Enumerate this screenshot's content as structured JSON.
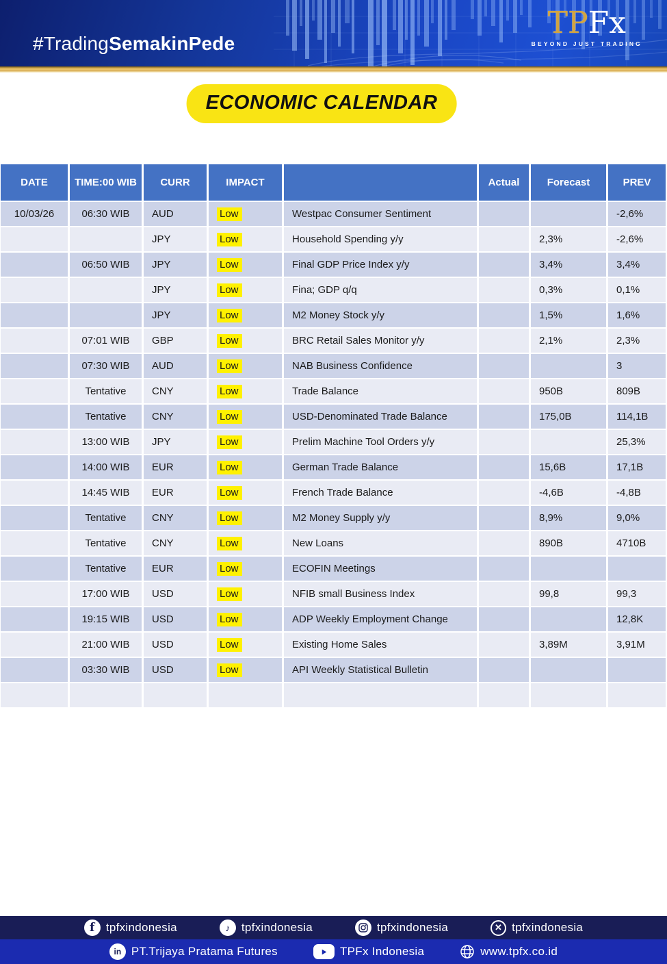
{
  "banner": {
    "hashtag_light": "#Trading",
    "hashtag_bold": "SemakinPede",
    "logo_tp": "TP",
    "logo_fx": "Fx",
    "logo_tagline": "BEYOND JUST TRADING"
  },
  "title": "ECONOMIC CALENDAR",
  "table": {
    "headers": [
      "DATE",
      "TIME:00 WIB",
      "CURR",
      "IMPACT",
      "",
      "Actual",
      "Forecast",
      "PREV"
    ],
    "rows": [
      [
        "10/03/26",
        "06:30 WIB",
        "AUD",
        "Low",
        "Westpac Consumer Sentiment",
        "",
        "",
        "-2,6%"
      ],
      [
        "",
        "",
        "JPY",
        "Low",
        "Household Spending y/y",
        "",
        "2,3%",
        "-2,6%"
      ],
      [
        "",
        "06:50 WIB",
        "JPY",
        "Low",
        "Final GDP Price Index y/y",
        "",
        "3,4%",
        "3,4%"
      ],
      [
        "",
        "",
        "JPY",
        "Low",
        "Fina; GDP q/q",
        "",
        "0,3%",
        "0,1%"
      ],
      [
        "",
        "",
        "JPY",
        "Low",
        "M2 Money Stock y/y",
        "",
        "1,5%",
        "1,6%"
      ],
      [
        "",
        "07:01 WIB",
        "GBP",
        "Low",
        "BRC Retail Sales Monitor y/y",
        "",
        "2,1%",
        "2,3%"
      ],
      [
        "",
        "07:30 WIB",
        "AUD",
        "Low",
        "NAB Business Confidence",
        "",
        "",
        "3"
      ],
      [
        "",
        "Tentative",
        "CNY",
        "Low",
        "Trade Balance",
        "",
        "950B",
        "809B"
      ],
      [
        "",
        "Tentative",
        "CNY",
        "Low",
        "USD-Denominated Trade Balance",
        "",
        "175,0B",
        "114,1B"
      ],
      [
        "",
        "13:00 WIB",
        "JPY",
        "Low",
        "Prelim Machine Tool Orders y/y",
        "",
        "",
        "25,3%"
      ],
      [
        "",
        "14:00 WIB",
        "EUR",
        "Low",
        "German Trade Balance",
        "",
        "15,6B",
        "17,1B"
      ],
      [
        "",
        "14:45 WIB",
        "EUR",
        "Low",
        "French Trade Balance",
        "",
        "-4,6B",
        "-4,8B"
      ],
      [
        "",
        "Tentative",
        "CNY",
        "Low",
        "M2 Money Supply y/y",
        "",
        "8,9%",
        "9,0%"
      ],
      [
        "",
        "Tentative",
        "CNY",
        "Low",
        "New Loans",
        "",
        "890B",
        "4710B"
      ],
      [
        "",
        "Tentative",
        "EUR",
        "Low",
        "ECOFIN Meetings",
        "",
        "",
        ""
      ],
      [
        "",
        "17:00 WIB",
        "USD",
        "Low",
        "NFIB small Business Index",
        "",
        "99,8",
        "99,3"
      ],
      [
        "",
        "19:15 WIB",
        "USD",
        "Low",
        "ADP Weekly Employment Change",
        "",
        "",
        "12,8K"
      ],
      [
        "",
        "21:00 WIB",
        "USD",
        "Low",
        "Existing Home Sales",
        "",
        "3,89M",
        "3,91M"
      ],
      [
        "",
        "03:30 WIB",
        "USD",
        "Low",
        "API Weekly Statistical Bulletin",
        "",
        "",
        ""
      ],
      [
        "",
        "",
        "",
        "",
        "",
        "",
        "",
        ""
      ]
    ]
  },
  "footer": {
    "social": [
      {
        "network": "facebook",
        "label": "tpfxindonesia"
      },
      {
        "network": "tiktok",
        "label": "tpfxindonesia"
      },
      {
        "network": "instagram",
        "label": "tpfxindonesia"
      },
      {
        "network": "x",
        "label": "tpfxindonesia"
      }
    ],
    "company": [
      {
        "network": "linkedin",
        "label": "PT.Trijaya Pratama Futures"
      },
      {
        "network": "youtube",
        "label": "TPFx Indonesia"
      },
      {
        "network": "website",
        "label": "www.tpfx.co.id"
      }
    ]
  },
  "colors": {
    "table_header_blue": "#4472C4",
    "row_dark": "#CCD3E8",
    "row_light": "#E9EBF4",
    "impact_highlight": "#FFF100",
    "title_badge_yellow": "#F9E414",
    "gold": "#D2A440",
    "footer_navy": "#191D56",
    "footer_royal_blue": "#1B2BB0",
    "banner_blue": "#1A46C4"
  }
}
